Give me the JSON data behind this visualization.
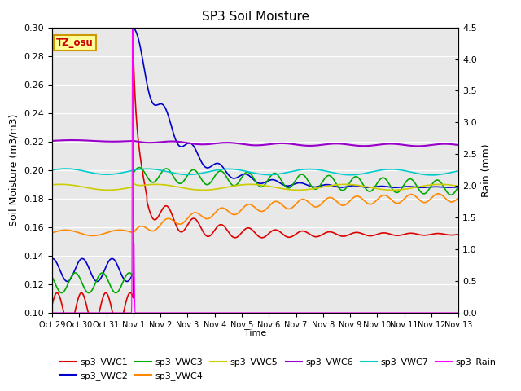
{
  "title": "SP3 Soil Moisture",
  "xlabel": "Time",
  "ylabel_left": "Soil Moisture (m3/m3)",
  "ylabel_right": "Rain (mm)",
  "ylim_left": [
    0.1,
    0.3
  ],
  "ylim_right": [
    0.0,
    4.5
  ],
  "timezone_label": "TZ_osu",
  "background_color": "#e8e8e8",
  "series_colors": {
    "sp3_VWC1": "#dd0000",
    "sp3_VWC2": "#0000cc",
    "sp3_VWC3": "#00aa00",
    "sp3_VWC4": "#ff8800",
    "sp3_VWC5": "#cccc00",
    "sp3_VWC6": "#9900cc",
    "sp3_VWC7": "#00cccc",
    "sp3_Rain": "#ff00ff"
  },
  "xtick_labels": [
    "Oct 29",
    "Oct 30",
    "Oct 31",
    "Nov 1",
    "Nov 2",
    "Nov 3",
    "Nov 4",
    "Nov 5",
    "Nov 6",
    "Nov 7",
    "Nov 8",
    "Nov 9",
    "Nov 10",
    "Nov 11",
    "Nov 12",
    "Nov 13"
  ],
  "xtick_positions": [
    0,
    1,
    2,
    3,
    4,
    5,
    6,
    7,
    8,
    9,
    10,
    11,
    12,
    13,
    14,
    15
  ],
  "yticks_left": [
    0.1,
    0.12,
    0.14,
    0.16,
    0.18,
    0.2,
    0.22,
    0.24,
    0.26,
    0.28,
    0.3
  ],
  "yticks_right": [
    0.0,
    0.5,
    1.0,
    1.5,
    2.0,
    2.5,
    3.0,
    3.5,
    4.0,
    4.5
  ]
}
